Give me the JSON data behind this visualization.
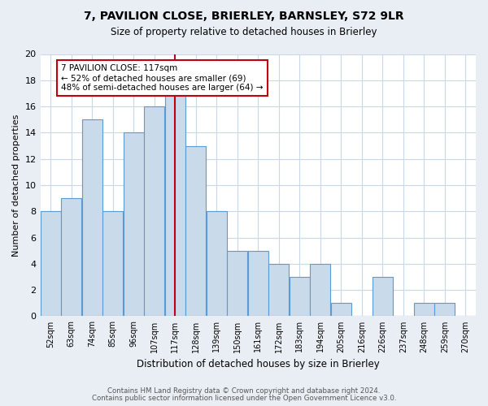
{
  "title": "7, PAVILION CLOSE, BRIERLEY, BARNSLEY, S72 9LR",
  "subtitle": "Size of property relative to detached houses in Brierley",
  "xlabel": "Distribution of detached houses by size in Brierley",
  "ylabel": "Number of detached properties",
  "bin_labels": [
    "52sqm",
    "63sqm",
    "74sqm",
    "85sqm",
    "96sqm",
    "107sqm",
    "117sqm",
    "128sqm",
    "139sqm",
    "150sqm",
    "161sqm",
    "172sqm",
    "183sqm",
    "194sqm",
    "205sqm",
    "216sqm",
    "226sqm",
    "237sqm",
    "248sqm",
    "259sqm",
    "270sqm"
  ],
  "bar_values": [
    8,
    9,
    15,
    8,
    14,
    16,
    17,
    13,
    8,
    5,
    5,
    4,
    3,
    4,
    1,
    0,
    3,
    0,
    1,
    1,
    0
  ],
  "bar_color": "#c9daea",
  "bar_edge_color": "#5b9bd5",
  "highlight_index": 6,
  "highlight_color": "#c0000c",
  "annotation_title": "7 PAVILION CLOSE: 117sqm",
  "annotation_line1": "← 52% of detached houses are smaller (69)",
  "annotation_line2": "48% of semi-detached houses are larger (64) →",
  "ylim": [
    0,
    20
  ],
  "yticks": [
    0,
    2,
    4,
    6,
    8,
    10,
    12,
    14,
    16,
    18,
    20
  ],
  "footer_line1": "Contains HM Land Registry data © Crown copyright and database right 2024.",
  "footer_line2": "Contains public sector information licensed under the Open Government Licence v3.0.",
  "bg_color": "#e8eef4",
  "plot_bg_color": "#ffffff",
  "grid_color": "#c8d8e8"
}
